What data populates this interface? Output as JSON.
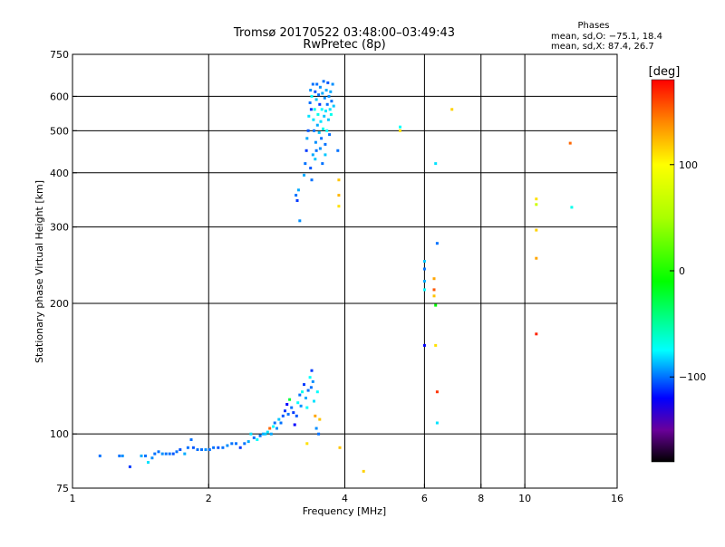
{
  "header": {
    "title": "Tromsø 20170522 03:48:00–03:49:43",
    "subtitle": "RwPretec (8p)"
  },
  "phases": {
    "title": "Phases",
    "line_o": "mean, sd,O: −75.1, 18.4",
    "line_x": "mean, sd,X:  87.4, 26.7"
  },
  "colorbar": {
    "label": "[deg]",
    "min": -180,
    "max": 180,
    "ticks": [
      {
        "value": 100,
        "label": "100"
      },
      {
        "value": 0,
        "label": "0"
      },
      {
        "value": -100,
        "label": "−100"
      }
    ],
    "stops": [
      {
        "value": -180,
        "color": "#000000"
      },
      {
        "value": -150,
        "color": "#6a009a"
      },
      {
        "value": -120,
        "color": "#0000ff"
      },
      {
        "value": -75,
        "color": "#00ffff"
      },
      {
        "value": -10,
        "color": "#00ff00"
      },
      {
        "value": 50,
        "color": "#aaff00"
      },
      {
        "value": 100,
        "color": "#ffff00"
      },
      {
        "value": 140,
        "color": "#ff8800"
      },
      {
        "value": 180,
        "color": "#ff0000"
      }
    ]
  },
  "chart_data": {
    "type": "scatter",
    "xlabel": "Frequency [MHz]",
    "ylabel": "Stationary phase Virtual Height [km]",
    "xscale": "log",
    "yscale": "log",
    "xlim": [
      1,
      16
    ],
    "ylim": [
      75,
      750
    ],
    "xticks": [
      {
        "value": 1,
        "label": "1"
      },
      {
        "value": 2,
        "label": "2"
      },
      {
        "value": 4,
        "label": "4"
      },
      {
        "value": 6,
        "label": "6"
      },
      {
        "value": 8,
        "label": "8"
      },
      {
        "value": 10,
        "label": "10"
      },
      {
        "value": 16,
        "label": "16"
      }
    ],
    "xgrid": [
      2,
      4,
      6,
      8,
      10
    ],
    "yticks": [
      {
        "value": 75,
        "label": "75"
      },
      {
        "value": 100,
        "label": "100"
      },
      {
        "value": 200,
        "label": "200"
      },
      {
        "value": 300,
        "label": "300"
      },
      {
        "value": 400,
        "label": "400"
      },
      {
        "value": 500,
        "label": "500"
      },
      {
        "value": 600,
        "label": "600"
      },
      {
        "value": 750,
        "label": "750"
      }
    ],
    "ygrid": [
      100,
      200,
      300,
      400,
      500,
      600
    ],
    "grid": true,
    "colorbar_label": "[deg]",
    "points": [
      [
        1.15,
        89,
        -100
      ],
      [
        1.27,
        89,
        -100
      ],
      [
        1.29,
        89,
        -95
      ],
      [
        1.34,
        84,
        -110
      ],
      [
        1.42,
        89,
        -90
      ],
      [
        1.45,
        89,
        -100
      ],
      [
        1.47,
        86,
        -80
      ],
      [
        1.5,
        88,
        -95
      ],
      [
        1.52,
        90,
        -100
      ],
      [
        1.55,
        91,
        -100
      ],
      [
        1.58,
        90,
        -95
      ],
      [
        1.61,
        90,
        -100
      ],
      [
        1.64,
        90,
        -100
      ],
      [
        1.67,
        90,
        -105
      ],
      [
        1.7,
        91,
        -100
      ],
      [
        1.73,
        92,
        -105
      ],
      [
        1.77,
        90,
        -90
      ],
      [
        1.8,
        93,
        -100
      ],
      [
        1.83,
        97,
        -100
      ],
      [
        1.85,
        93,
        -105
      ],
      [
        1.89,
        92,
        -100
      ],
      [
        1.93,
        92,
        -100
      ],
      [
        1.97,
        92,
        -95
      ],
      [
        2.01,
        92,
        -100
      ],
      [
        2.05,
        93,
        -100
      ],
      [
        2.1,
        93,
        -105
      ],
      [
        2.15,
        93,
        -100
      ],
      [
        2.2,
        94,
        -95
      ],
      [
        2.25,
        95,
        -100
      ],
      [
        2.3,
        95,
        -100
      ],
      [
        2.35,
        93,
        -110
      ],
      [
        2.4,
        95,
        -100
      ],
      [
        2.45,
        96,
        -90
      ],
      [
        2.48,
        100,
        -80
      ],
      [
        2.52,
        98,
        -100
      ],
      [
        2.56,
        97,
        -75
      ],
      [
        2.6,
        99,
        -100
      ],
      [
        2.64,
        100,
        -90
      ],
      [
        2.67,
        100,
        -85
      ],
      [
        2.7,
        101,
        -80
      ],
      [
        2.73,
        103,
        150
      ],
      [
        2.75,
        100,
        -90
      ],
      [
        2.78,
        104,
        -75
      ],
      [
        2.8,
        106,
        -100
      ],
      [
        2.83,
        103,
        -95
      ],
      [
        2.86,
        108,
        -85
      ],
      [
        2.89,
        106,
        -100
      ],
      [
        2.92,
        110,
        -105
      ],
      [
        2.95,
        113,
        -110
      ],
      [
        2.98,
        117,
        -120
      ],
      [
        3.0,
        111,
        -100
      ],
      [
        3.02,
        120,
        -25
      ],
      [
        3.05,
        115,
        -100
      ],
      [
        3.08,
        112,
        -110
      ],
      [
        3.1,
        105,
        -120
      ],
      [
        3.13,
        110,
        -105
      ],
      [
        3.15,
        118,
        -75
      ],
      [
        3.18,
        123,
        -100
      ],
      [
        3.2,
        116,
        -95
      ],
      [
        3.22,
        125,
        -70
      ],
      [
        3.25,
        130,
        -110
      ],
      [
        3.28,
        121,
        -90
      ],
      [
        3.3,
        115,
        -75
      ],
      [
        3.32,
        126,
        -100
      ],
      [
        3.35,
        135,
        -75
      ],
      [
        3.37,
        128,
        -100
      ],
      [
        3.38,
        140,
        -110
      ],
      [
        3.4,
        132,
        -95
      ],
      [
        3.42,
        119,
        -80
      ],
      [
        3.44,
        110,
        130
      ],
      [
        3.46,
        103,
        -95
      ],
      [
        3.48,
        125,
        -75
      ],
      [
        3.5,
        100,
        -100
      ],
      [
        3.52,
        108,
        120
      ],
      [
        3.3,
        95,
        110
      ],
      [
        3.12,
        355,
        -100
      ],
      [
        3.14,
        345,
        -110
      ],
      [
        3.16,
        365,
        -90
      ],
      [
        3.18,
        310,
        -95
      ],
      [
        3.25,
        395,
        -90
      ],
      [
        3.27,
        420,
        -100
      ],
      [
        3.29,
        450,
        -110
      ],
      [
        3.3,
        480,
        -90
      ],
      [
        3.32,
        500,
        -105
      ],
      [
        3.33,
        540,
        -80
      ],
      [
        3.35,
        580,
        -100
      ],
      [
        3.36,
        620,
        -95
      ],
      [
        3.37,
        560,
        -110
      ],
      [
        3.38,
        600,
        -75
      ],
      [
        3.4,
        640,
        -100
      ],
      [
        3.41,
        530,
        -80
      ],
      [
        3.42,
        500,
        -100
      ],
      [
        3.43,
        560,
        -70
      ],
      [
        3.44,
        615,
        -105
      ],
      [
        3.45,
        470,
        -95
      ],
      [
        3.46,
        590,
        -85
      ],
      [
        3.47,
        640,
        -100
      ],
      [
        3.48,
        515,
        -90
      ],
      [
        3.49,
        545,
        -70
      ],
      [
        3.5,
        605,
        -100
      ],
      [
        3.51,
        495,
        -85
      ],
      [
        3.52,
        575,
        -110
      ],
      [
        3.53,
        630,
        -95
      ],
      [
        3.54,
        525,
        -80
      ],
      [
        3.55,
        480,
        -100
      ],
      [
        3.56,
        560,
        -75
      ],
      [
        3.57,
        610,
        -90
      ],
      [
        3.58,
        505,
        -70
      ],
      [
        3.59,
        650,
        -100
      ],
      [
        3.6,
        540,
        -85
      ],
      [
        3.61,
        595,
        -95
      ],
      [
        3.62,
        465,
        -100
      ],
      [
        3.63,
        555,
        -80
      ],
      [
        3.64,
        620,
        -90
      ],
      [
        3.65,
        500,
        -75
      ],
      [
        3.66,
        575,
        -100
      ],
      [
        3.67,
        645,
        -105
      ],
      [
        3.68,
        530,
        -85
      ],
      [
        3.69,
        600,
        -95
      ],
      [
        3.7,
        490,
        -100
      ],
      [
        3.71,
        560,
        -80
      ],
      [
        3.72,
        615,
        -90
      ],
      [
        3.73,
        545,
        -70
      ],
      [
        3.74,
        585,
        -100
      ],
      [
        3.76,
        640,
        -95
      ],
      [
        3.78,
        570,
        -85
      ],
      [
        3.36,
        410,
        -105
      ],
      [
        3.38,
        385,
        -100
      ],
      [
        3.4,
        440,
        -90
      ],
      [
        3.44,
        430,
        -85
      ],
      [
        3.46,
        450,
        -100
      ],
      [
        3.53,
        455,
        -95
      ],
      [
        3.57,
        420,
        -100
      ],
      [
        3.62,
        440,
        -85
      ],
      [
        3.86,
        450,
        -100
      ],
      [
        3.88,
        385,
        120
      ],
      [
        3.88,
        355,
        125
      ],
      [
        3.88,
        335,
        110
      ],
      [
        3.9,
        93,
        120
      ],
      [
        4.4,
        82,
        115
      ],
      [
        5.3,
        500,
        110
      ],
      [
        5.3,
        510,
        -75
      ],
      [
        6.9,
        560,
        115
      ],
      [
        6.0,
        250,
        -85
      ],
      [
        6.0,
        240,
        -100
      ],
      [
        6.0,
        225,
        -90
      ],
      [
        6.0,
        215,
        -75
      ],
      [
        6.0,
        160,
        -120
      ],
      [
        6.35,
        420,
        -80
      ],
      [
        6.4,
        275,
        -100
      ],
      [
        6.3,
        228,
        130
      ],
      [
        6.3,
        215,
        155
      ],
      [
        6.3,
        208,
        120
      ],
      [
        6.35,
        198,
        -10
      ],
      [
        6.35,
        160,
        110
      ],
      [
        6.4,
        125,
        165
      ],
      [
        6.4,
        106,
        -80
      ],
      [
        10.6,
        348,
        110
      ],
      [
        10.6,
        338,
        70
      ],
      [
        10.6,
        295,
        115
      ],
      [
        10.6,
        254,
        130
      ],
      [
        10.6,
        170,
        170
      ],
      [
        12.6,
        468,
        150
      ],
      [
        12.7,
        333,
        -70
      ]
    ]
  }
}
